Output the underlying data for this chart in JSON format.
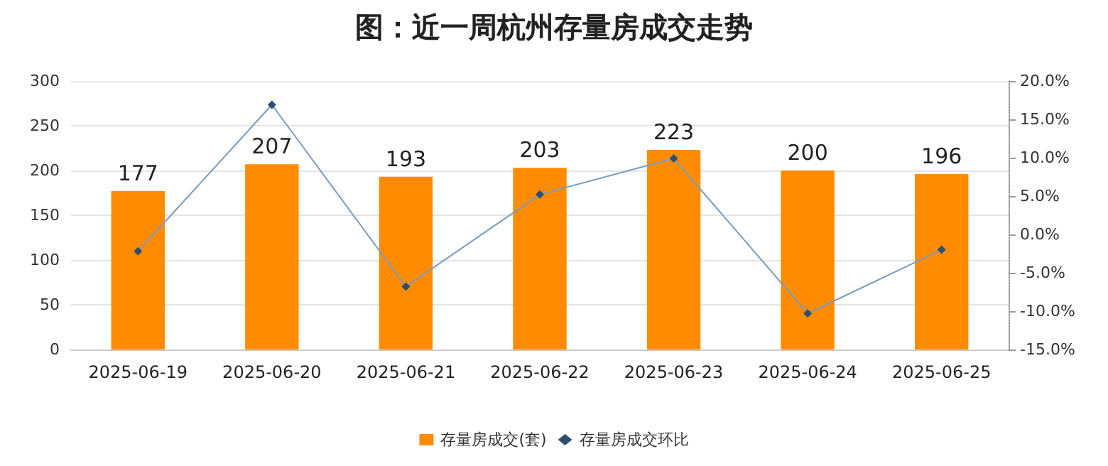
{
  "chart_data": {
    "type": "bar",
    "title": "图：近一周杭州存量房成交走势",
    "categories": [
      "2025-06-19",
      "2025-06-20",
      "2025-06-21",
      "2025-06-22",
      "2025-06-23",
      "2025-06-24",
      "2025-06-25"
    ],
    "series": [
      {
        "name": "存量房成交(套)",
        "color": "#ff8c00",
        "values": [
          177,
          207,
          193,
          203,
          223,
          200,
          196
        ],
        "data_labels": true
      },
      {
        "name": "存量房成交环比",
        "type": "line",
        "axis": "y2",
        "color": "#7b9cc0",
        "marker": "diamond",
        "values": [
          -2.2,
          16.9,
          -6.8,
          5.2,
          9.9,
          -10.3,
          -2.0
        ]
      }
    ],
    "ylim": [
      0,
      300
    ],
    "yticks": [
      0,
      50,
      100,
      150,
      200,
      250,
      300
    ],
    "y2lim": [
      -15,
      20
    ],
    "y2ticks": [
      {
        "value": -15,
        "label": "-15.0%"
      },
      {
        "value": -10,
        "label": "-10.0%"
      },
      {
        "value": -5,
        "label": "-5.0%"
      },
      {
        "value": 0,
        "label": "0.0%"
      },
      {
        "value": 5,
        "label": "5.0%"
      },
      {
        "value": 10,
        "label": "10.0%"
      },
      {
        "value": 15,
        "label": "15.0%"
      },
      {
        "value": 20,
        "label": "20.0%"
      }
    ],
    "grid": "y",
    "legend": "bottom"
  }
}
